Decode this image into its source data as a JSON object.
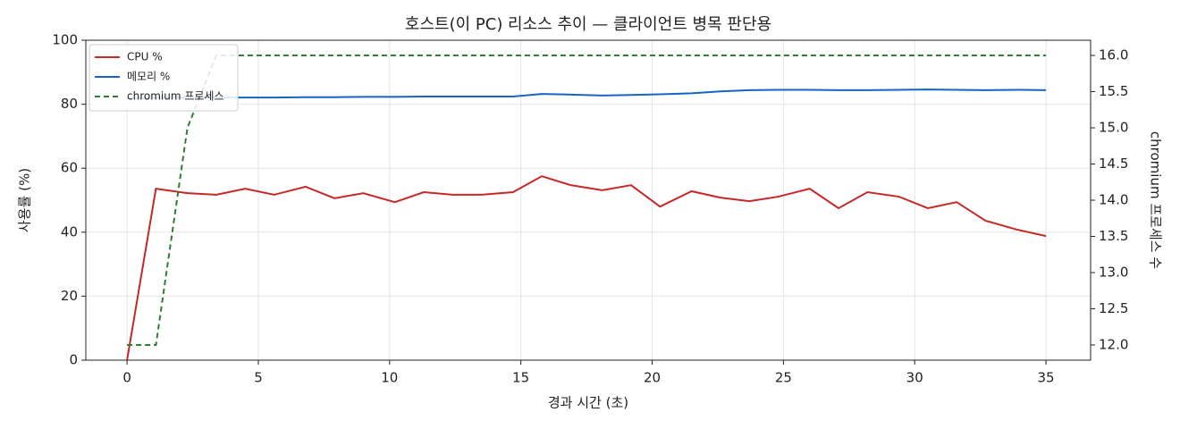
{
  "chart_data": {
    "type": "line",
    "title": "호스트(이 PC) 리소스 추이 — 클라이언트 병목 판단용",
    "xlabel": "경과 시간 (초)",
    "ylabel": "사용률 (%)",
    "y2label": "chromium 프로세스 수",
    "x": [
      0,
      1.1,
      2.3,
      3.4,
      4.5,
      5.6,
      6.8,
      7.9,
      9.0,
      10.2,
      11.3,
      12.4,
      13.5,
      14.7,
      15.8,
      16.9,
      18.1,
      19.2,
      20.3,
      21.5,
      22.6,
      23.7,
      24.8,
      26.0,
      27.1,
      28.2,
      29.4,
      30.5,
      31.6,
      32.7,
      33.9,
      35.0
    ],
    "series": [
      {
        "name": "CPU %",
        "color": "#c62828",
        "axis": "y",
        "dashed": false,
        "values": [
          0,
          53.6,
          52.2,
          51.7,
          53.6,
          51.7,
          54.2,
          50.6,
          52.2,
          49.4,
          52.5,
          51.7,
          51.7,
          52.5,
          57.5,
          54.7,
          53.1,
          54.7,
          48.0,
          52.8,
          50.8,
          49.7,
          51.1,
          53.6,
          47.5,
          52.5,
          51.1,
          47.5,
          49.4,
          43.6,
          40.8,
          38.8
        ]
      },
      {
        "name": "메모리 %",
        "color": "#1565c0",
        "axis": "y",
        "dashed": false,
        "values": [
          81.8,
          82.0,
          82.1,
          82.1,
          82.1,
          82.1,
          82.2,
          82.2,
          82.3,
          82.3,
          82.4,
          82.4,
          82.4,
          82.4,
          83.2,
          83.0,
          82.7,
          82.9,
          83.1,
          83.4,
          84.0,
          84.4,
          84.5,
          84.5,
          84.4,
          84.4,
          84.5,
          84.6,
          84.5,
          84.4,
          84.5,
          84.4
        ]
      },
      {
        "name": "chromium 프로세스",
        "color": "#2e7d32",
        "axis": "y2",
        "dashed": true,
        "values": [
          12,
          12,
          15,
          16,
          16,
          16,
          16,
          16,
          16,
          16,
          16,
          16,
          16,
          16,
          16,
          16,
          16,
          16,
          16,
          16,
          16,
          16,
          16,
          16,
          16,
          16,
          16,
          16,
          16,
          16,
          16,
          16
        ]
      }
    ],
    "xlim": [
      -1.57,
      36.7
    ],
    "xticks": [
      0,
      5,
      10,
      15,
      20,
      25,
      30,
      35
    ],
    "ylim": [
      0,
      100
    ],
    "yticks": [
      0,
      20,
      40,
      60,
      80,
      100
    ],
    "y2lim": [
      11.79,
      16.21
    ],
    "y2ticks": [
      {
        "value": 12,
        "label": "12.0"
      },
      {
        "value": 12.5,
        "label": "12.5"
      },
      {
        "value": 13,
        "label": "13.0"
      },
      {
        "value": 13.5,
        "label": "13.5"
      },
      {
        "value": 14,
        "label": "14.0"
      },
      {
        "value": 14.5,
        "label": "14.5"
      },
      {
        "value": 15,
        "label": "15.0"
      },
      {
        "value": 15.5,
        "label": "15.5"
      },
      {
        "value": 16,
        "label": "16.0"
      }
    ],
    "grid": true,
    "legend": "upper left"
  }
}
